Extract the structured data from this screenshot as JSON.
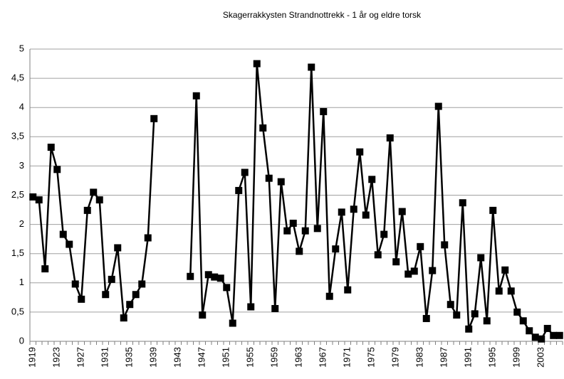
{
  "chart_data": {
    "type": "line",
    "title": "Skagerrakkysten Strandnottrekk - 1 år og eldre torsk",
    "categories": [
      "1919",
      null,
      null,
      null,
      "1923",
      null,
      null,
      null,
      "1927",
      null,
      null,
      null,
      "1931",
      null,
      null,
      null,
      "1935",
      null,
      null,
      null,
      "1939",
      null,
      null,
      null,
      "1943",
      null,
      null,
      null,
      "1947",
      null,
      null,
      null,
      "1951",
      null,
      null,
      null,
      "1955",
      null,
      null,
      null,
      "1959",
      null,
      null,
      null,
      "1963",
      null,
      null,
      null,
      "1967",
      null,
      null,
      null,
      "1971",
      null,
      null,
      null,
      "1975",
      null,
      null,
      null,
      "1979",
      null,
      null,
      null,
      "1983",
      null,
      null,
      null,
      "1987",
      null,
      null,
      null,
      "1991",
      null,
      null,
      null,
      "1995",
      null,
      null,
      null,
      "1999",
      null,
      null,
      null,
      "2003",
      null,
      null,
      null
    ],
    "series": [
      {
        "name": "torsk",
        "color": "#000000",
        "values": [
          2.47,
          2.42,
          1.24,
          3.32,
          2.94,
          1.83,
          1.66,
          0.98,
          0.72,
          2.24,
          2.55,
          2.42,
          0.8,
          1.06,
          1.6,
          0.4,
          0.63,
          0.8,
          0.98,
          1.77,
          3.81,
          null,
          null,
          null,
          null,
          null,
          1.11,
          4.2,
          0.45,
          1.14,
          1.1,
          1.08,
          0.92,
          0.31,
          2.58,
          2.89,
          0.59,
          4.75,
          3.65,
          2.79,
          0.56,
          2.73,
          1.89,
          2.02,
          1.54,
          1.89,
          4.69,
          1.93,
          3.93,
          0.77,
          1.58,
          2.21,
          0.88,
          2.26,
          3.24,
          2.16,
          2.77,
          1.48,
          1.83,
          3.48,
          1.36,
          2.22,
          1.15,
          1.2,
          1.62,
          0.39,
          1.21,
          4.02,
          1.65,
          0.63,
          0.45,
          2.37,
          0.21,
          0.47,
          1.43,
          0.35,
          2.24,
          0.86,
          1.22,
          0.86,
          0.5,
          0.35,
          0.18,
          0.07,
          0.04,
          0.22,
          0.1,
          0.1
        ]
      }
    ],
    "ylim": [
      0,
      5
    ],
    "yticks": [
      0,
      {
        "value": 0.5,
        "label": "0,5"
      },
      1,
      {
        "value": 1.5,
        "label": "1,5"
      },
      2,
      {
        "value": 2.5,
        "label": "2,5"
      },
      3,
      {
        "value": 3.5,
        "label": "3,5"
      },
      4,
      {
        "value": 4.5,
        "label": "4,5"
      },
      5
    ],
    "grid": true
  }
}
